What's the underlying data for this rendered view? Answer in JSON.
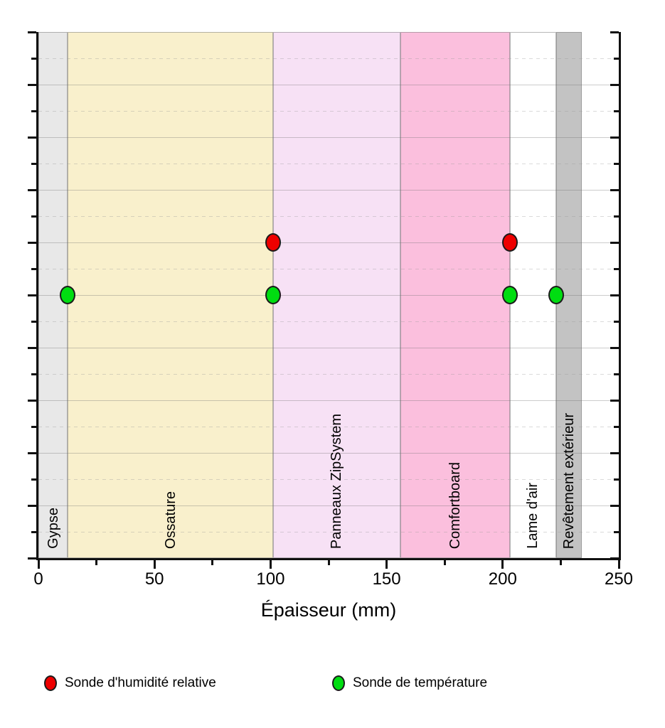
{
  "chart_data": {
    "type": "scatter",
    "title": "",
    "xlabel": "Épaisseur (mm)",
    "ylabel": "",
    "xlim": [
      0,
      250
    ],
    "x_major_ticks": [
      0,
      50,
      100,
      150,
      200,
      250
    ],
    "x_minor_ticks": [
      25,
      75,
      125,
      175,
      225
    ],
    "y_axis": {
      "tick_labels_visible": false,
      "major_divisions": 10,
      "grid": "horizontal only: solid lines at major ticks, dashed lines at minor ticks"
    },
    "layers": [
      {
        "name": "Gypse",
        "start_mm": 0,
        "end_mm": 12.7,
        "color": "#e8e8e8"
      },
      {
        "name": "Ossature",
        "start_mm": 12.7,
        "end_mm": 101,
        "color": "#f9f0cc"
      },
      {
        "name": "Panneaux ZipSystem",
        "start_mm": 101,
        "end_mm": 156,
        "color": "#f7e1f5"
      },
      {
        "name": "Comfortboard",
        "start_mm": 156,
        "end_mm": 203,
        "color": "#fbbfdd"
      },
      {
        "name": "Lame d'air",
        "start_mm": 203,
        "end_mm": 223,
        "color": "#ffffff"
      },
      {
        "name": "Revêtement extérieur",
        "start_mm": 223,
        "end_mm": 234,
        "color": "#c3c3c3"
      }
    ],
    "series": [
      {
        "name": "Sonde d'humidité relative",
        "marker_color": "#ee0000",
        "y_level": 6,
        "x_mm": [
          101,
          203
        ]
      },
      {
        "name": "Sonde de température",
        "marker_color": "#00dd11",
        "y_level": 5,
        "x_mm": [
          12.7,
          101,
          203,
          223
        ]
      }
    ],
    "legend_position": "bottom"
  },
  "axis": {
    "title": "Épaisseur (mm)"
  },
  "legend": {
    "items": [
      {
        "label": "Sonde d'humidité relative",
        "color": "#ee0000"
      },
      {
        "label": "Sonde de température",
        "color": "#00dd11"
      }
    ]
  }
}
